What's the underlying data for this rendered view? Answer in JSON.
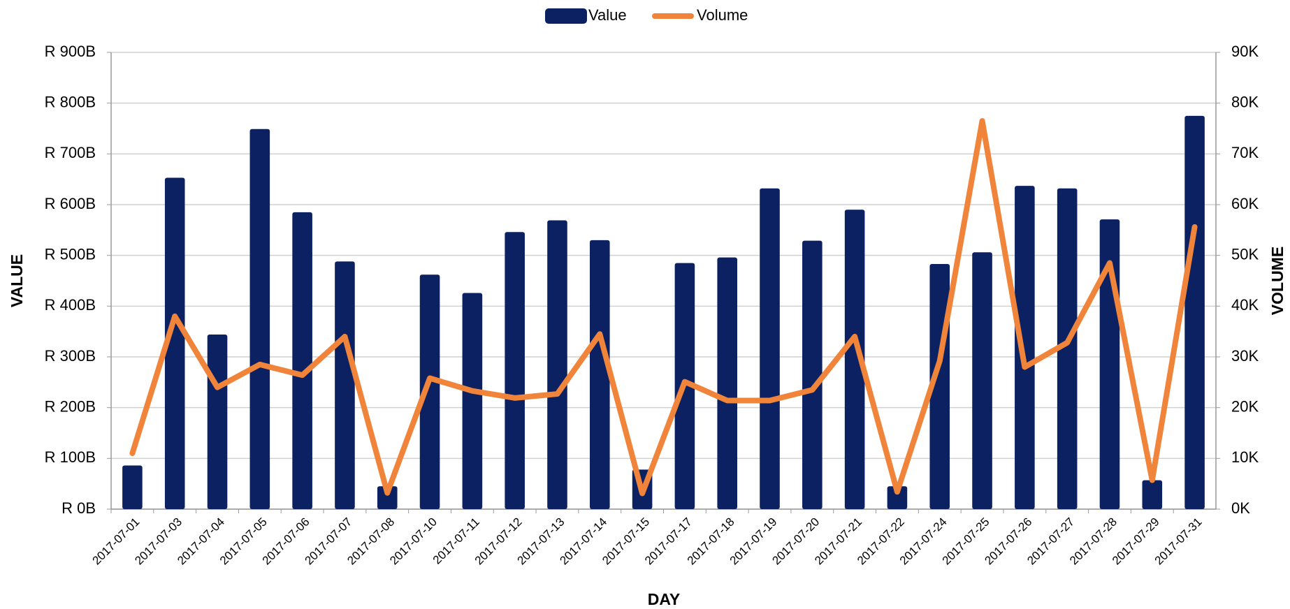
{
  "chart_data": {
    "type": "bar",
    "x_label": "DAY",
    "y_label": "VALUE",
    "y2_label": "VOLUME",
    "categories": [
      "2017-07-01",
      "2017-07-03",
      "2017-07-04",
      "2017-07-05",
      "2017-07-06",
      "2017-07-07",
      "2017-07-08",
      "2017-07-10",
      "2017-07-11",
      "2017-07-12",
      "2017-07-13",
      "2017-07-14",
      "2017-07-15",
      "2017-07-17",
      "2017-07-18",
      "2017-07-19",
      "2017-07-20",
      "2017-07-21",
      "2017-07-22",
      "2017-07-24",
      "2017-07-25",
      "2017-07-26",
      "2017-07-27",
      "2017-07-28",
      "2017-07-29",
      "2017-07-31"
    ],
    "series": [
      {
        "name": "Value",
        "type": "bar",
        "color": "#0b2161",
        "values": [
          86,
          653,
          344,
          749,
          585,
          488,
          45,
          462,
          426,
          546,
          569,
          530,
          78,
          485,
          496,
          632,
          529,
          590,
          45,
          483,
          506,
          637,
          632,
          571,
          57,
          775
        ]
      },
      {
        "name": "Volume",
        "type": "line",
        "axis": "y2",
        "color": "#f0843a",
        "values": [
          11000,
          38000,
          24000,
          28500,
          26400,
          34000,
          3200,
          25800,
          23300,
          21900,
          22700,
          34500,
          3100,
          25100,
          21400,
          21400,
          23500,
          34000,
          3400,
          29200,
          76500,
          28000,
          32800,
          48500,
          5700,
          55600
        ]
      }
    ],
    "ylim": [
      0,
      900
    ],
    "yticks": [
      {
        "value": 0,
        "label": "R 0B"
      },
      {
        "value": 100,
        "label": "R 100B"
      },
      {
        "value": 200,
        "label": "R 200B"
      },
      {
        "value": 300,
        "label": "R 300B"
      },
      {
        "value": 400,
        "label": "R 400B"
      },
      {
        "value": 500,
        "label": "R 500B"
      },
      {
        "value": 600,
        "label": "R 600B"
      },
      {
        "value": 700,
        "label": "R 700B"
      },
      {
        "value": 800,
        "label": "R 800B"
      },
      {
        "value": 900,
        "label": "R 900B"
      }
    ],
    "y2lim": [
      0,
      90000
    ],
    "y2ticks": [
      {
        "value": 0,
        "label": "0K"
      },
      {
        "value": 10000,
        "label": "10K"
      },
      {
        "value": 20000,
        "label": "20K"
      },
      {
        "value": 30000,
        "label": "30K"
      },
      {
        "value": 40000,
        "label": "40K"
      },
      {
        "value": 50000,
        "label": "50K"
      },
      {
        "value": 60000,
        "label": "60K"
      },
      {
        "value": 70000,
        "label": "70K"
      },
      {
        "value": 80000,
        "label": "80K"
      },
      {
        "value": 90000,
        "label": "90K"
      }
    ],
    "grid": true,
    "legend": "top"
  }
}
